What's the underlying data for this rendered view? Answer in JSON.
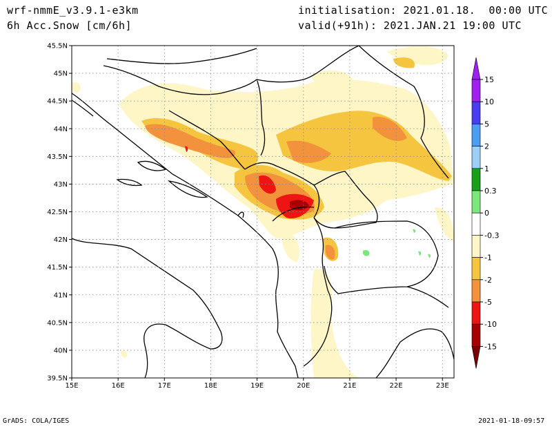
{
  "header": {
    "model": "wrf-nmmE_v3.9.1-e3km",
    "variable": "6h Acc.Snow [cm/6h]",
    "initialisation": "initialisation: 2021.01.18.  00:00 UTC",
    "valid": "valid(+91h): 2021.JAN.21 19:00 UTC"
  },
  "axes": {
    "lat_labels": [
      "45.5N",
      "45N",
      "44.5N",
      "44N",
      "43.5N",
      "43N",
      "42.5N",
      "42N",
      "41.5N",
      "41N",
      "40.5N",
      "40N",
      "39.5N"
    ],
    "lon_labels": [
      "15E",
      "16E",
      "17E",
      "18E",
      "19E",
      "20E",
      "21E",
      "22E",
      "23E"
    ]
  },
  "colorbar": {
    "labels": [
      "15",
      "10",
      "5",
      "2",
      "1",
      "0.3",
      "0",
      "-0.3",
      "-1",
      "-2",
      "-5",
      "-10",
      "-15"
    ],
    "colors": [
      "#a020f0",
      "#4a3cf0",
      "#4c9cf0",
      "#9ccff6",
      "#18a018",
      "#7ce87c",
      "#ffffff",
      "#fff6c8",
      "#f5c540",
      "#f3923c",
      "#ef1414",
      "#a80000"
    ],
    "top_arrow_color": "#a020f0",
    "bottom_arrow_color": "#780000"
  },
  "footer": {
    "credit": "GrADS: COLA/IGES",
    "timestamp": "2021-01-18-09:57"
  }
}
